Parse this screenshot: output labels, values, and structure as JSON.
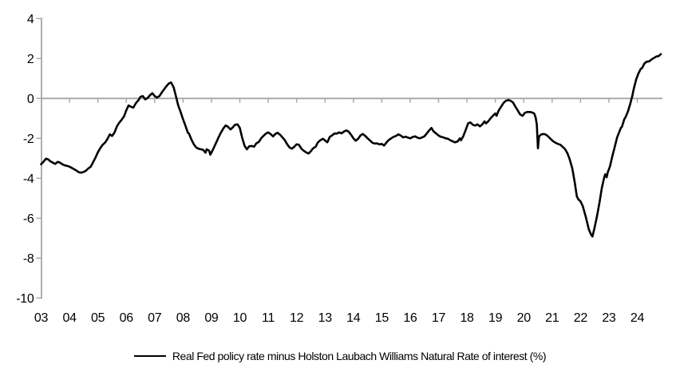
{
  "chart_data": {
    "type": "line",
    "title": "",
    "xlabel": "",
    "ylabel": "",
    "ylim": [
      -10,
      4
    ],
    "xlim": [
      2003,
      2024.9
    ],
    "grid": "zero-line-only",
    "legend_position": "bottom-center",
    "axis_color": "#A6A6A6",
    "background_color": "#FFFFFF",
    "y_ticks": [
      4,
      2,
      0,
      -2,
      -4,
      -6,
      -8,
      -10
    ],
    "x_tick_labels": [
      "03",
      "04",
      "05",
      "06",
      "07",
      "08",
      "09",
      "10",
      "11",
      "12",
      "13",
      "14",
      "15",
      "16",
      "17",
      "18",
      "19",
      "20",
      "21",
      "22",
      "23",
      "24"
    ],
    "x_tick_years": [
      2003,
      2004,
      2005,
      2006,
      2007,
      2008,
      2009,
      2010,
      2011,
      2012,
      2013,
      2014,
      2015,
      2016,
      2017,
      2018,
      2019,
      2020,
      2021,
      2022,
      2023,
      2024
    ],
    "series": [
      {
        "name": "Real Fed policy rate minus Holston Laubach Williams Natural Rate of interest (%)",
        "color": "#000000",
        "line_width": 2.6,
        "points": [
          [
            2003.0,
            -3.3
          ],
          [
            2003.08,
            -3.18
          ],
          [
            2003.17,
            -3.02
          ],
          [
            2003.25,
            -3.05
          ],
          [
            2003.33,
            -3.15
          ],
          [
            2003.42,
            -3.22
          ],
          [
            2003.5,
            -3.28
          ],
          [
            2003.58,
            -3.18
          ],
          [
            2003.67,
            -3.22
          ],
          [
            2003.75,
            -3.3
          ],
          [
            2003.83,
            -3.35
          ],
          [
            2003.92,
            -3.38
          ],
          [
            2004.0,
            -3.42
          ],
          [
            2004.08,
            -3.48
          ],
          [
            2004.17,
            -3.55
          ],
          [
            2004.25,
            -3.62
          ],
          [
            2004.33,
            -3.7
          ],
          [
            2004.42,
            -3.72
          ],
          [
            2004.5,
            -3.68
          ],
          [
            2004.58,
            -3.62
          ],
          [
            2004.67,
            -3.5
          ],
          [
            2004.75,
            -3.42
          ],
          [
            2004.83,
            -3.2
          ],
          [
            2004.92,
            -2.95
          ],
          [
            2005.0,
            -2.7
          ],
          [
            2005.08,
            -2.5
          ],
          [
            2005.17,
            -2.32
          ],
          [
            2005.25,
            -2.22
          ],
          [
            2005.33,
            -2.05
          ],
          [
            2005.42,
            -1.8
          ],
          [
            2005.5,
            -1.88
          ],
          [
            2005.58,
            -1.72
          ],
          [
            2005.67,
            -1.4
          ],
          [
            2005.75,
            -1.22
          ],
          [
            2005.83,
            -1.08
          ],
          [
            2005.92,
            -0.9
          ],
          [
            2006.0,
            -0.6
          ],
          [
            2006.08,
            -0.35
          ],
          [
            2006.17,
            -0.42
          ],
          [
            2006.25,
            -0.46
          ],
          [
            2006.33,
            -0.25
          ],
          [
            2006.42,
            -0.1
          ],
          [
            2006.5,
            0.08
          ],
          [
            2006.58,
            0.12
          ],
          [
            2006.67,
            -0.05
          ],
          [
            2006.75,
            0.02
          ],
          [
            2006.83,
            0.15
          ],
          [
            2006.92,
            0.26
          ],
          [
            2007.0,
            0.12
          ],
          [
            2007.08,
            0.04
          ],
          [
            2007.17,
            0.12
          ],
          [
            2007.25,
            0.3
          ],
          [
            2007.33,
            0.45
          ],
          [
            2007.42,
            0.62
          ],
          [
            2007.5,
            0.75
          ],
          [
            2007.58,
            0.8
          ],
          [
            2007.67,
            0.55
          ],
          [
            2007.75,
            0.1
          ],
          [
            2007.83,
            -0.35
          ],
          [
            2007.92,
            -0.7
          ],
          [
            2008.0,
            -1.05
          ],
          [
            2008.08,
            -1.35
          ],
          [
            2008.17,
            -1.72
          ],
          [
            2008.21,
            -1.76
          ],
          [
            2008.29,
            -2.05
          ],
          [
            2008.38,
            -2.3
          ],
          [
            2008.46,
            -2.45
          ],
          [
            2008.54,
            -2.52
          ],
          [
            2008.63,
            -2.55
          ],
          [
            2008.71,
            -2.58
          ],
          [
            2008.79,
            -2.72
          ],
          [
            2008.83,
            -2.55
          ],
          [
            2008.92,
            -2.62
          ],
          [
            2008.96,
            -2.82
          ],
          [
            2009.0,
            -2.72
          ],
          [
            2009.08,
            -2.48
          ],
          [
            2009.17,
            -2.2
          ],
          [
            2009.25,
            -1.95
          ],
          [
            2009.33,
            -1.72
          ],
          [
            2009.42,
            -1.5
          ],
          [
            2009.5,
            -1.35
          ],
          [
            2009.58,
            -1.42
          ],
          [
            2009.67,
            -1.55
          ],
          [
            2009.75,
            -1.45
          ],
          [
            2009.83,
            -1.32
          ],
          [
            2009.92,
            -1.3
          ],
          [
            2010.0,
            -1.48
          ],
          [
            2010.08,
            -1.95
          ],
          [
            2010.17,
            -2.38
          ],
          [
            2010.25,
            -2.55
          ],
          [
            2010.33,
            -2.4
          ],
          [
            2010.42,
            -2.38
          ],
          [
            2010.5,
            -2.42
          ],
          [
            2010.58,
            -2.25
          ],
          [
            2010.67,
            -2.18
          ],
          [
            2010.75,
            -2.0
          ],
          [
            2010.83,
            -1.88
          ],
          [
            2010.92,
            -1.76
          ],
          [
            2011.0,
            -1.7
          ],
          [
            2011.08,
            -1.78
          ],
          [
            2011.17,
            -1.9
          ],
          [
            2011.25,
            -1.78
          ],
          [
            2011.33,
            -1.72
          ],
          [
            2011.42,
            -1.82
          ],
          [
            2011.5,
            -1.95
          ],
          [
            2011.58,
            -2.08
          ],
          [
            2011.67,
            -2.3
          ],
          [
            2011.75,
            -2.45
          ],
          [
            2011.83,
            -2.52
          ],
          [
            2011.92,
            -2.42
          ],
          [
            2012.0,
            -2.3
          ],
          [
            2012.08,
            -2.32
          ],
          [
            2012.17,
            -2.52
          ],
          [
            2012.25,
            -2.62
          ],
          [
            2012.33,
            -2.7
          ],
          [
            2012.42,
            -2.76
          ],
          [
            2012.5,
            -2.65
          ],
          [
            2012.58,
            -2.5
          ],
          [
            2012.67,
            -2.42
          ],
          [
            2012.75,
            -2.2
          ],
          [
            2012.83,
            -2.1
          ],
          [
            2012.92,
            -2.02
          ],
          [
            2013.0,
            -2.1
          ],
          [
            2013.08,
            -2.2
          ],
          [
            2013.17,
            -1.92
          ],
          [
            2013.25,
            -1.85
          ],
          [
            2013.33,
            -1.76
          ],
          [
            2013.42,
            -1.76
          ],
          [
            2013.5,
            -1.7
          ],
          [
            2013.58,
            -1.75
          ],
          [
            2013.67,
            -1.66
          ],
          [
            2013.75,
            -1.6
          ],
          [
            2013.83,
            -1.66
          ],
          [
            2013.92,
            -1.82
          ],
          [
            2014.0,
            -2.0
          ],
          [
            2014.08,
            -2.12
          ],
          [
            2014.17,
            -2.02
          ],
          [
            2014.25,
            -1.85
          ],
          [
            2014.33,
            -1.78
          ],
          [
            2014.42,
            -1.88
          ],
          [
            2014.5,
            -2.0
          ],
          [
            2014.58,
            -2.1
          ],
          [
            2014.67,
            -2.22
          ],
          [
            2014.75,
            -2.26
          ],
          [
            2014.83,
            -2.25
          ],
          [
            2014.92,
            -2.3
          ],
          [
            2015.0,
            -2.28
          ],
          [
            2015.08,
            -2.36
          ],
          [
            2015.17,
            -2.2
          ],
          [
            2015.25,
            -2.08
          ],
          [
            2015.33,
            -2.0
          ],
          [
            2015.42,
            -1.92
          ],
          [
            2015.5,
            -1.88
          ],
          [
            2015.58,
            -1.8
          ],
          [
            2015.67,
            -1.86
          ],
          [
            2015.75,
            -1.95
          ],
          [
            2015.83,
            -1.92
          ],
          [
            2015.92,
            -1.96
          ],
          [
            2016.0,
            -2.0
          ],
          [
            2016.08,
            -1.94
          ],
          [
            2016.17,
            -1.9
          ],
          [
            2016.25,
            -1.96
          ],
          [
            2016.33,
            -2.0
          ],
          [
            2016.42,
            -1.95
          ],
          [
            2016.5,
            -1.9
          ],
          [
            2016.58,
            -1.76
          ],
          [
            2016.67,
            -1.6
          ],
          [
            2016.75,
            -1.48
          ],
          [
            2016.83,
            -1.66
          ],
          [
            2016.92,
            -1.76
          ],
          [
            2017.0,
            -1.86
          ],
          [
            2017.08,
            -1.92
          ],
          [
            2017.17,
            -1.95
          ],
          [
            2017.25,
            -2.0
          ],
          [
            2017.33,
            -2.02
          ],
          [
            2017.42,
            -2.1
          ],
          [
            2017.5,
            -2.15
          ],
          [
            2017.58,
            -2.2
          ],
          [
            2017.67,
            -2.16
          ],
          [
            2017.75,
            -2.0
          ],
          [
            2017.79,
            -2.1
          ],
          [
            2017.87,
            -1.9
          ],
          [
            2017.95,
            -1.6
          ],
          [
            2018.04,
            -1.25
          ],
          [
            2018.12,
            -1.2
          ],
          [
            2018.21,
            -1.32
          ],
          [
            2018.29,
            -1.36
          ],
          [
            2018.37,
            -1.3
          ],
          [
            2018.46,
            -1.4
          ],
          [
            2018.54,
            -1.3
          ],
          [
            2018.62,
            -1.15
          ],
          [
            2018.67,
            -1.25
          ],
          [
            2018.75,
            -1.15
          ],
          [
            2018.83,
            -1.0
          ],
          [
            2018.92,
            -0.86
          ],
          [
            2019.0,
            -0.75
          ],
          [
            2019.04,
            -0.87
          ],
          [
            2019.12,
            -0.6
          ],
          [
            2019.21,
            -0.4
          ],
          [
            2019.29,
            -0.22
          ],
          [
            2019.37,
            -0.12
          ],
          [
            2019.46,
            -0.08
          ],
          [
            2019.54,
            -0.12
          ],
          [
            2019.62,
            -0.2
          ],
          [
            2019.71,
            -0.42
          ],
          [
            2019.79,
            -0.6
          ],
          [
            2019.87,
            -0.8
          ],
          [
            2019.96,
            -0.87
          ],
          [
            2020.04,
            -0.72
          ],
          [
            2020.12,
            -0.68
          ],
          [
            2020.21,
            -0.68
          ],
          [
            2020.29,
            -0.7
          ],
          [
            2020.37,
            -0.76
          ],
          [
            2020.42,
            -0.95
          ],
          [
            2020.46,
            -1.3
          ],
          [
            2020.5,
            -2.5
          ],
          [
            2020.54,
            -1.9
          ],
          [
            2020.62,
            -1.8
          ],
          [
            2020.71,
            -1.78
          ],
          [
            2020.79,
            -1.82
          ],
          [
            2020.87,
            -1.92
          ],
          [
            2020.96,
            -2.05
          ],
          [
            2021.04,
            -2.15
          ],
          [
            2021.12,
            -2.22
          ],
          [
            2021.21,
            -2.28
          ],
          [
            2021.29,
            -2.32
          ],
          [
            2021.37,
            -2.42
          ],
          [
            2021.46,
            -2.55
          ],
          [
            2021.54,
            -2.75
          ],
          [
            2021.62,
            -3.05
          ],
          [
            2021.71,
            -3.5
          ],
          [
            2021.79,
            -4.15
          ],
          [
            2021.87,
            -4.9
          ],
          [
            2021.92,
            -5.05
          ],
          [
            2022.0,
            -5.15
          ],
          [
            2022.08,
            -5.4
          ],
          [
            2022.17,
            -5.85
          ],
          [
            2022.25,
            -6.3
          ],
          [
            2022.29,
            -6.55
          ],
          [
            2022.37,
            -6.82
          ],
          [
            2022.42,
            -6.92
          ],
          [
            2022.5,
            -6.45
          ],
          [
            2022.58,
            -5.9
          ],
          [
            2022.67,
            -5.2
          ],
          [
            2022.75,
            -4.5
          ],
          [
            2022.83,
            -3.98
          ],
          [
            2022.87,
            -3.8
          ],
          [
            2022.92,
            -3.95
          ],
          [
            2022.96,
            -3.7
          ],
          [
            2023.04,
            -3.4
          ],
          [
            2023.12,
            -2.9
          ],
          [
            2023.21,
            -2.4
          ],
          [
            2023.29,
            -1.95
          ],
          [
            2023.33,
            -1.8
          ],
          [
            2023.42,
            -1.48
          ],
          [
            2023.46,
            -1.42
          ],
          [
            2023.54,
            -1.05
          ],
          [
            2023.58,
            -0.95
          ],
          [
            2023.67,
            -0.65
          ],
          [
            2023.75,
            -0.28
          ],
          [
            2023.83,
            0.15
          ],
          [
            2023.87,
            0.45
          ],
          [
            2023.96,
            0.95
          ],
          [
            2024.04,
            1.25
          ],
          [
            2024.12,
            1.48
          ],
          [
            2024.17,
            1.52
          ],
          [
            2024.25,
            1.75
          ],
          [
            2024.33,
            1.84
          ],
          [
            2024.42,
            1.86
          ],
          [
            2024.5,
            1.95
          ],
          [
            2024.58,
            2.02
          ],
          [
            2024.67,
            2.1
          ],
          [
            2024.75,
            2.12
          ],
          [
            2024.83,
            2.22
          ]
        ]
      }
    ]
  },
  "legend": {
    "label": "Real Fed policy rate minus Holston Laubach Williams Natural Rate of interest (%)"
  }
}
